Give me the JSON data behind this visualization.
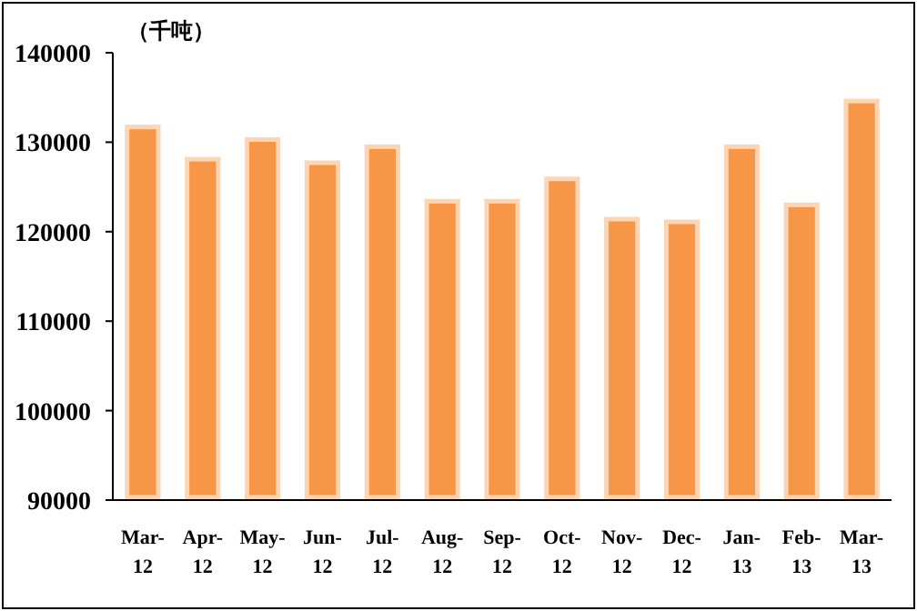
{
  "chart_data": {
    "type": "bar",
    "ylabel": "（千吨）",
    "categories": [
      "Mar-12",
      "Apr-12",
      "May-12",
      "Jun-12",
      "Jul-12",
      "Aug-12",
      "Sep-12",
      "Oct-12",
      "Nov-12",
      "Dec-12",
      "Jan-13",
      "Feb-13",
      "Mar-13"
    ],
    "values": [
      131700,
      128100,
      130300,
      127700,
      129500,
      123400,
      123400,
      125900,
      121400,
      121100,
      129500,
      123000,
      134600
    ],
    "color": "#f79646",
    "ylim": [
      90000,
      140000
    ],
    "yticks": [
      90000,
      100000,
      110000,
      120000,
      130000,
      140000
    ],
    "grid": false
  }
}
